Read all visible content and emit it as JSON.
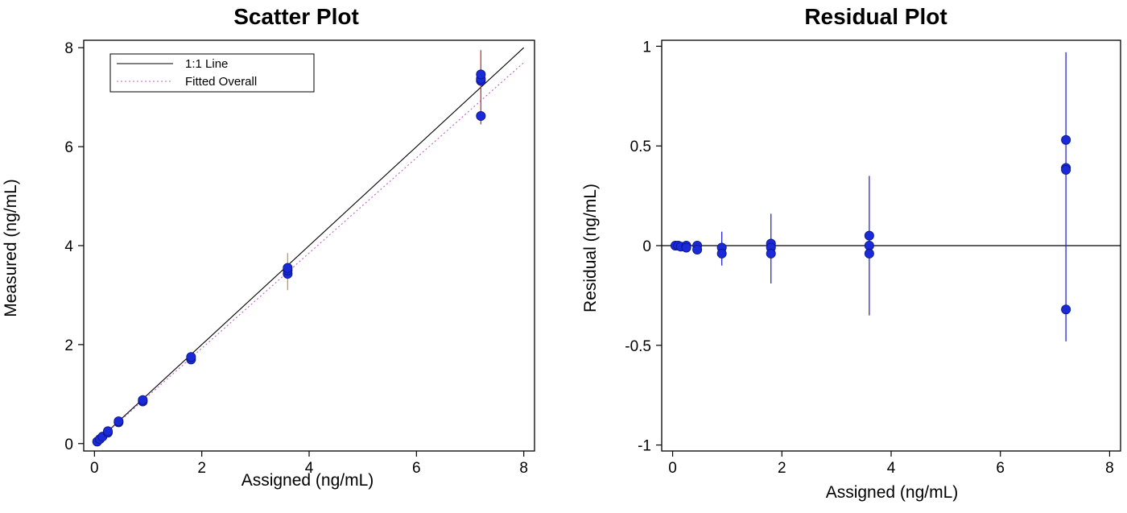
{
  "chart_data": [
    {
      "type": "scatter",
      "title": "Scatter Plot",
      "xlabel": "Assigned (ng/mL)",
      "ylabel": "Measured (ng/mL)",
      "xlim": [
        -0.2,
        8.2
      ],
      "ylim": [
        -0.15,
        8.15
      ],
      "xticks": [
        "0",
        "2",
        "4",
        "6",
        "8"
      ],
      "yticks": [
        "0",
        "2",
        "4",
        "6",
        "8"
      ],
      "grid": false,
      "legend": {
        "position": "top-left",
        "entries": [
          "1:1 Line",
          "Fitted Overall"
        ]
      },
      "lines": [
        {
          "name": "1:1 Line",
          "color": "#000000",
          "style": "solid",
          "x": [
            0,
            8
          ],
          "y": [
            0,
            8
          ]
        },
        {
          "name": "Fitted Overall",
          "color": "#c060c8",
          "style": "dotted",
          "x": [
            0,
            8
          ],
          "y": [
            0,
            7.7
          ]
        }
      ],
      "points": [
        {
          "x": 0.05,
          "y": 0.04
        },
        {
          "x": 0.1,
          "y": 0.09
        },
        {
          "x": 0.15,
          "y": 0.14
        },
        {
          "x": 0.25,
          "y": 0.22
        },
        {
          "x": 0.25,
          "y": 0.25
        },
        {
          "x": 0.45,
          "y": 0.43
        },
        {
          "x": 0.45,
          "y": 0.45
        },
        {
          "x": 0.9,
          "y": 0.85
        },
        {
          "x": 0.9,
          "y": 0.88
        },
        {
          "x": 1.8,
          "y": 1.7
        },
        {
          "x": 1.8,
          "y": 1.75
        },
        {
          "x": 3.6,
          "y": 3.43
        },
        {
          "x": 3.6,
          "y": 3.5
        },
        {
          "x": 3.6,
          "y": 3.55
        },
        {
          "x": 7.2,
          "y": 6.62
        },
        {
          "x": 7.2,
          "y": 7.33
        },
        {
          "x": 7.2,
          "y": 7.37
        },
        {
          "x": 7.2,
          "y": 7.46
        }
      ],
      "point_color": "#1a2ad8",
      "error_bars": [
        {
          "x": 3.6,
          "low": 3.1,
          "high": 3.85,
          "color": "#d4904a"
        },
        {
          "x": 7.2,
          "low": 6.45,
          "high": 7.95,
          "color": "#d23030"
        }
      ]
    },
    {
      "type": "scatter",
      "title": "Residual Plot",
      "xlabel": "Assigned (ng/mL)",
      "ylabel": "Residual (ng/mL)",
      "xlim": [
        -0.2,
        8.2
      ],
      "ylim": [
        -1.03,
        1.03
      ],
      "xticks": [
        "0",
        "2",
        "4",
        "6",
        "8"
      ],
      "yticks": [
        "1",
        "0.5",
        "0",
        "-0.5",
        "-1"
      ],
      "grid": false,
      "reference_line": 0,
      "points": [
        {
          "x": 0.05,
          "y": 0
        },
        {
          "x": 0.1,
          "y": 0
        },
        {
          "x": 0.15,
          "y": -0.005
        },
        {
          "x": 0.25,
          "y": 0
        },
        {
          "x": 0.25,
          "y": -0.01
        },
        {
          "x": 0.45,
          "y": 0
        },
        {
          "x": 0.45,
          "y": -0.02
        },
        {
          "x": 0.9,
          "y": -0.01
        },
        {
          "x": 0.9,
          "y": -0.04
        },
        {
          "x": 1.8,
          "y": 0.01
        },
        {
          "x": 1.8,
          "y": -0.01
        },
        {
          "x": 1.8,
          "y": -0.04
        },
        {
          "x": 3.6,
          "y": 0.05
        },
        {
          "x": 3.6,
          "y": 0
        },
        {
          "x": 3.6,
          "y": -0.04
        },
        {
          "x": 7.2,
          "y": 0.53
        },
        {
          "x": 7.2,
          "y": 0.39
        },
        {
          "x": 7.2,
          "y": 0.38
        },
        {
          "x": 7.2,
          "y": -0.32
        }
      ],
      "point_color": "#1a2ad8",
      "error_bars": [
        {
          "x": 0.9,
          "low": -0.1,
          "high": 0.07,
          "color": "#2a2ad0"
        },
        {
          "x": 1.8,
          "low": -0.19,
          "high": 0.16,
          "color": "#2a2ad0"
        },
        {
          "x": 3.6,
          "low": -0.35,
          "high": 0.35,
          "color": "#2a2ad0"
        },
        {
          "x": 7.2,
          "low": -0.48,
          "high": 0.97,
          "color": "#2a2ad0"
        }
      ]
    }
  ]
}
